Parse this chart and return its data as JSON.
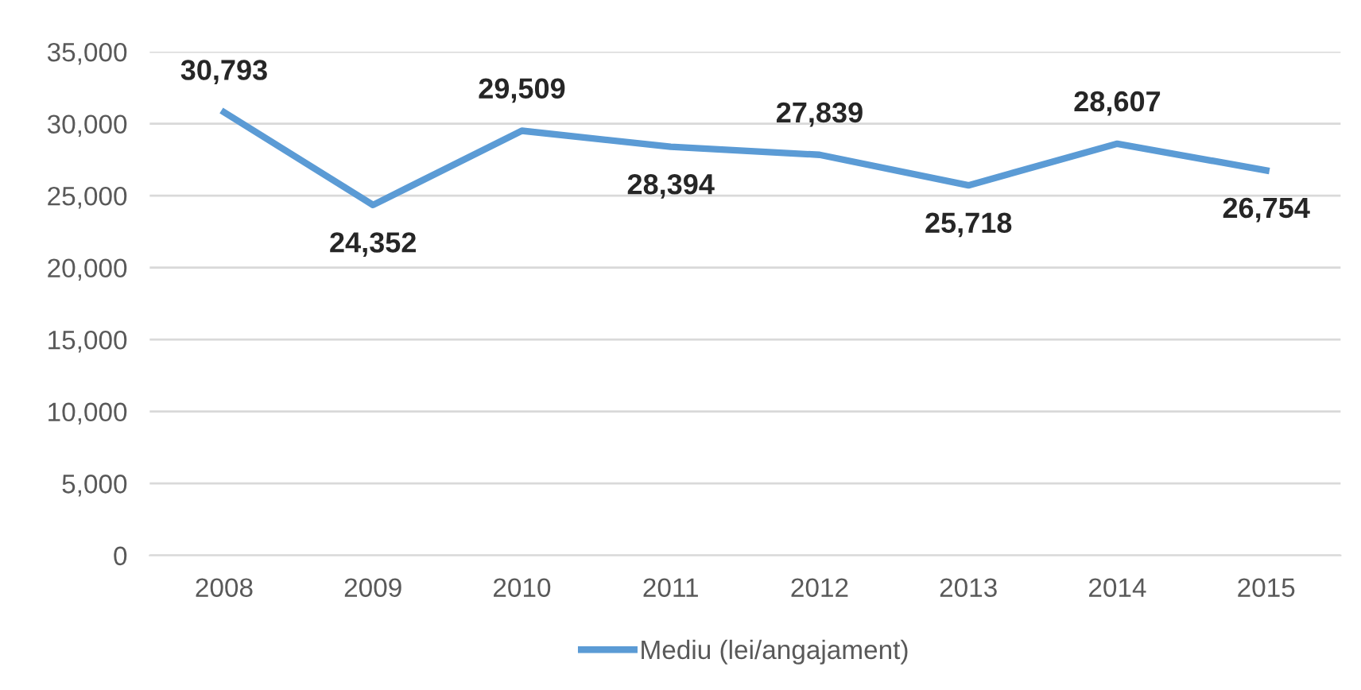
{
  "chart_data": {
    "type": "line",
    "categories": [
      "2008",
      "2009",
      "2010",
      "2011",
      "2012",
      "2013",
      "2014",
      "2015"
    ],
    "series": [
      {
        "name": "Mediu (lei/angajament)",
        "color": "#5b9bd5",
        "values": [
          30793,
          24352,
          29509,
          28394,
          27839,
          25718,
          28607,
          26754
        ],
        "value_labels": [
          "30,793",
          "24,352",
          "29,509",
          "28,394",
          "27,839",
          "25,718",
          "28,607",
          "26,754"
        ]
      }
    ],
    "ylim": [
      0,
      35000
    ],
    "yticks": [
      {
        "value": 0,
        "label": "0"
      },
      {
        "value": 5000,
        "label": "5,000"
      },
      {
        "value": 10000,
        "label": "10,000"
      },
      {
        "value": 15000,
        "label": "15,000"
      },
      {
        "value": 20000,
        "label": "20,000"
      },
      {
        "value": 25000,
        "label": "25,000"
      },
      {
        "value": 30000,
        "label": "30,000"
      },
      {
        "value": 35000,
        "label": "35,000"
      }
    ],
    "grid": "y",
    "legend": "bottom",
    "marker": "none",
    "line_style": "solid"
  }
}
